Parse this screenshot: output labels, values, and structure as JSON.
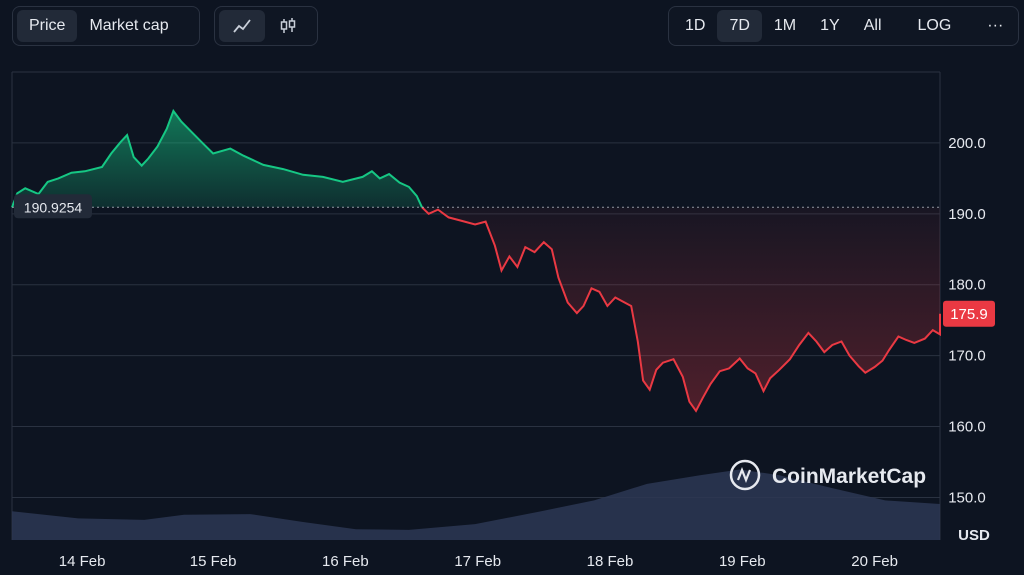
{
  "toolbar": {
    "metric_tabs": [
      {
        "label": "Price",
        "active": true
      },
      {
        "label": "Market cap",
        "active": false
      }
    ],
    "chart_icons": [
      {
        "name": "line-chart-icon",
        "active": true
      },
      {
        "name": "candlestick-icon",
        "active": false
      }
    ],
    "ranges": [
      {
        "label": "1D",
        "active": false
      },
      {
        "label": "7D",
        "active": true
      },
      {
        "label": "1M",
        "active": false
      },
      {
        "label": "1Y",
        "active": false
      },
      {
        "label": "All",
        "active": false
      }
    ],
    "log_label": "LOG",
    "more_label": "···"
  },
  "watermark": "CoinMarketCap",
  "colors": {
    "up": "#16c784",
    "down": "#ea3943",
    "grid": "#2a3241",
    "volume": "#2d3754",
    "bg": "#0d1421"
  },
  "chart_data": {
    "type": "area",
    "currency": "USD",
    "reference_value": 190.9254,
    "reference_label": "190.9254",
    "last_value": 175.9,
    "last_label": "175.9",
    "ylim": [
      144,
      210
    ],
    "yticks": [
      150.0,
      160.0,
      170.0,
      180.0,
      190.0,
      200.0
    ],
    "ytick_labels": [
      "150.0",
      "160.0",
      "170.0",
      "180.0",
      "190.0",
      "200.0"
    ],
    "xlabels": [
      "14 Feb",
      "15 Feb",
      "16 Feb",
      "17 Feb",
      "18 Feb",
      "19 Feb",
      "20 Feb"
    ],
    "xlabel_days": [
      0.53,
      1.52,
      2.52,
      3.52,
      4.52,
      5.52,
      6.52
    ],
    "xlim_days": [
      0.0,
      7.0
    ],
    "grid": "horizontal",
    "series": [
      {
        "values": [
          {
            "d": 0.0,
            "v": 190.9
          },
          {
            "d": 0.04,
            "v": 192.9
          },
          {
            "d": 0.1,
            "v": 193.6
          },
          {
            "d": 0.2,
            "v": 192.8
          },
          {
            "d": 0.27,
            "v": 194.5
          },
          {
            "d": 0.35,
            "v": 195.0
          },
          {
            "d": 0.45,
            "v": 195.8
          },
          {
            "d": 0.55,
            "v": 196.0
          },
          {
            "d": 0.68,
            "v": 196.6
          },
          {
            "d": 0.75,
            "v": 198.5
          },
          {
            "d": 0.82,
            "v": 200.1
          },
          {
            "d": 0.87,
            "v": 201.1
          },
          {
            "d": 0.92,
            "v": 198.0
          },
          {
            "d": 0.98,
            "v": 196.8
          },
          {
            "d": 1.03,
            "v": 197.8
          },
          {
            "d": 1.1,
            "v": 199.5
          },
          {
            "d": 1.17,
            "v": 202.0
          },
          {
            "d": 1.22,
            "v": 204.5
          },
          {
            "d": 1.28,
            "v": 203.0
          },
          {
            "d": 1.36,
            "v": 201.5
          },
          {
            "d": 1.45,
            "v": 199.8
          },
          {
            "d": 1.52,
            "v": 198.5
          },
          {
            "d": 1.65,
            "v": 199.2
          },
          {
            "d": 1.75,
            "v": 198.2
          },
          {
            "d": 1.9,
            "v": 196.9
          },
          {
            "d": 2.05,
            "v": 196.3
          },
          {
            "d": 2.2,
            "v": 195.5
          },
          {
            "d": 2.35,
            "v": 195.2
          },
          {
            "d": 2.5,
            "v": 194.5
          },
          {
            "d": 2.65,
            "v": 195.2
          },
          {
            "d": 2.72,
            "v": 196.0
          },
          {
            "d": 2.78,
            "v": 195.0
          },
          {
            "d": 2.85,
            "v": 195.6
          },
          {
            "d": 2.93,
            "v": 194.4
          },
          {
            "d": 3.0,
            "v": 193.8
          },
          {
            "d": 3.06,
            "v": 192.5
          },
          {
            "d": 3.1,
            "v": 190.9
          },
          {
            "d": 3.15,
            "v": 190.0
          },
          {
            "d": 3.22,
            "v": 190.6
          },
          {
            "d": 3.3,
            "v": 189.5
          },
          {
            "d": 3.4,
            "v": 189.0
          },
          {
            "d": 3.5,
            "v": 188.5
          },
          {
            "d": 3.58,
            "v": 188.9
          },
          {
            "d": 3.65,
            "v": 185.5
          },
          {
            "d": 3.7,
            "v": 182.0
          },
          {
            "d": 3.76,
            "v": 184.0
          },
          {
            "d": 3.82,
            "v": 182.5
          },
          {
            "d": 3.88,
            "v": 185.3
          },
          {
            "d": 3.95,
            "v": 184.6
          },
          {
            "d": 4.02,
            "v": 186.0
          },
          {
            "d": 4.08,
            "v": 185.0
          },
          {
            "d": 4.13,
            "v": 181.0
          },
          {
            "d": 4.2,
            "v": 177.5
          },
          {
            "d": 4.27,
            "v": 176.0
          },
          {
            "d": 4.32,
            "v": 177.0
          },
          {
            "d": 4.38,
            "v": 179.5
          },
          {
            "d": 4.44,
            "v": 179.0
          },
          {
            "d": 4.5,
            "v": 177.0
          },
          {
            "d": 4.56,
            "v": 178.2
          },
          {
            "d": 4.62,
            "v": 177.6
          },
          {
            "d": 4.68,
            "v": 177.0
          },
          {
            "d": 4.73,
            "v": 172.0
          },
          {
            "d": 4.77,
            "v": 166.5
          },
          {
            "d": 4.82,
            "v": 165.2
          },
          {
            "d": 4.87,
            "v": 168.0
          },
          {
            "d": 4.92,
            "v": 169.0
          },
          {
            "d": 5.0,
            "v": 169.5
          },
          {
            "d": 5.07,
            "v": 167.0
          },
          {
            "d": 5.12,
            "v": 163.5
          },
          {
            "d": 5.17,
            "v": 162.2
          },
          {
            "d": 5.22,
            "v": 164.0
          },
          {
            "d": 5.28,
            "v": 166.0
          },
          {
            "d": 5.35,
            "v": 167.8
          },
          {
            "d": 5.42,
            "v": 168.2
          },
          {
            "d": 5.5,
            "v": 169.6
          },
          {
            "d": 5.56,
            "v": 168.2
          },
          {
            "d": 5.62,
            "v": 167.5
          },
          {
            "d": 5.68,
            "v": 165.0
          },
          {
            "d": 5.73,
            "v": 166.8
          },
          {
            "d": 5.8,
            "v": 168.0
          },
          {
            "d": 5.88,
            "v": 169.5
          },
          {
            "d": 5.95,
            "v": 171.5
          },
          {
            "d": 6.02,
            "v": 173.2
          },
          {
            "d": 6.08,
            "v": 172.0
          },
          {
            "d": 6.14,
            "v": 170.5
          },
          {
            "d": 6.2,
            "v": 171.5
          },
          {
            "d": 6.27,
            "v": 172.0
          },
          {
            "d": 6.33,
            "v": 170.0
          },
          {
            "d": 6.4,
            "v": 168.5
          },
          {
            "d": 6.45,
            "v": 167.6
          },
          {
            "d": 6.52,
            "v": 168.4
          },
          {
            "d": 6.58,
            "v": 169.3
          },
          {
            "d": 6.63,
            "v": 170.8
          },
          {
            "d": 6.7,
            "v": 172.7
          },
          {
            "d": 6.76,
            "v": 172.2
          },
          {
            "d": 6.82,
            "v": 171.8
          },
          {
            "d": 6.9,
            "v": 172.4
          },
          {
            "d": 6.96,
            "v": 173.6
          },
          {
            "d": 7.02,
            "v": 173.0
          },
          {
            "d": 7.1,
            "v": 175.9
          }
        ]
      }
    ],
    "volume_relative": [
      {
        "d": 0.0,
        "v": 0.4
      },
      {
        "d": 0.5,
        "v": 0.3
      },
      {
        "d": 1.0,
        "v": 0.28
      },
      {
        "d": 1.3,
        "v": 0.35
      },
      {
        "d": 1.8,
        "v": 0.36
      },
      {
        "d": 2.2,
        "v": 0.25
      },
      {
        "d": 2.6,
        "v": 0.15
      },
      {
        "d": 3.0,
        "v": 0.14
      },
      {
        "d": 3.5,
        "v": 0.22
      },
      {
        "d": 4.0,
        "v": 0.4
      },
      {
        "d": 4.4,
        "v": 0.55
      },
      {
        "d": 4.8,
        "v": 0.78
      },
      {
        "d": 5.2,
        "v": 0.9
      },
      {
        "d": 5.5,
        "v": 0.98
      },
      {
        "d": 5.8,
        "v": 0.9
      },
      {
        "d": 6.2,
        "v": 0.72
      },
      {
        "d": 6.6,
        "v": 0.55
      },
      {
        "d": 7.1,
        "v": 0.5
      }
    ]
  }
}
